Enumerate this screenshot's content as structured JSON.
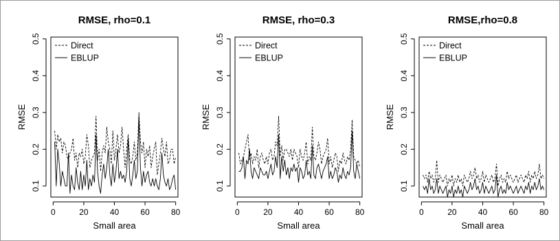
{
  "chart_data": [
    {
      "type": "line",
      "title": "RMSE, rho=0.1",
      "xlabel": "Small area",
      "ylabel": "RMSE",
      "xlim": [
        0,
        80
      ],
      "ylim": [
        0.05,
        0.5
      ],
      "xticks": [
        0,
        20,
        40,
        60,
        80
      ],
      "yticks": [
        0.1,
        0.2,
        0.3,
        0.4,
        0.5
      ],
      "grid": false,
      "legend": "top-left",
      "series": [
        {
          "name": "Direct",
          "style": "dashed",
          "values": [
            0.25,
            0.2,
            0.24,
            0.22,
            0.23,
            0.19,
            0.22,
            0.21,
            0.18,
            0.17,
            0.19,
            0.2,
            0.23,
            0.17,
            0.19,
            0.15,
            0.19,
            0.18,
            0.2,
            0.16,
            0.18,
            0.24,
            0.21,
            0.15,
            0.17,
            0.18,
            0.19,
            0.29,
            0.17,
            0.2,
            0.14,
            0.19,
            0.21,
            0.19,
            0.26,
            0.22,
            0.2,
            0.16,
            0.25,
            0.17,
            0.2,
            0.24,
            0.19,
            0.21,
            0.26,
            0.2,
            0.15,
            0.2,
            0.24,
            0.17,
            0.16,
            0.18,
            0.22,
            0.17,
            0.19,
            0.3,
            0.22,
            0.19,
            0.22,
            0.15,
            0.2,
            0.18,
            0.21,
            0.15,
            0.18,
            0.2,
            0.22,
            0.13,
            0.16,
            0.19,
            0.23,
            0.2,
            0.18,
            0.22,
            0.16,
            0.17,
            0.2,
            0.2,
            0.16,
            0.18
          ]
        },
        {
          "name": "EBLUP",
          "style": "solid",
          "values": [
            0.22,
            0.1,
            0.2,
            0.16,
            0.1,
            0.14,
            0.12,
            0.1,
            0.1,
            0.19,
            0.08,
            0.13,
            0.1,
            0.09,
            0.15,
            0.11,
            0.09,
            0.14,
            0.09,
            0.13,
            0.1,
            0.17,
            0.09,
            0.12,
            0.1,
            0.13,
            0.11,
            0.24,
            0.14,
            0.1,
            0.08,
            0.13,
            0.16,
            0.12,
            0.15,
            0.2,
            0.13,
            0.1,
            0.16,
            0.11,
            0.14,
            0.2,
            0.12,
            0.14,
            0.12,
            0.13,
            0.11,
            0.14,
            0.23,
            0.12,
            0.1,
            0.13,
            0.17,
            0.12,
            0.14,
            0.29,
            0.15,
            0.1,
            0.14,
            0.11,
            0.13,
            0.14,
            0.11,
            0.1,
            0.12,
            0.1,
            0.12,
            0.1,
            0.09,
            0.12,
            0.19,
            0.13,
            0.11,
            0.1,
            0.12,
            0.09,
            0.1,
            0.12,
            0.13,
            0.09
          ]
        }
      ]
    },
    {
      "type": "line",
      "title": "RMSE, rho=0.3",
      "xlabel": "Small area",
      "ylabel": "RMSE",
      "xlim": [
        0,
        80
      ],
      "ylim": [
        0.05,
        0.5
      ],
      "xticks": [
        0,
        20,
        40,
        60,
        80
      ],
      "yticks": [
        0.1,
        0.2,
        0.3,
        0.4,
        0.5
      ],
      "grid": false,
      "legend": "top-left",
      "series": [
        {
          "name": "Direct",
          "style": "dashed",
          "values": [
            0.19,
            0.16,
            0.17,
            0.18,
            0.2,
            0.22,
            0.24,
            0.17,
            0.19,
            0.16,
            0.18,
            0.17,
            0.2,
            0.15,
            0.18,
            0.19,
            0.17,
            0.16,
            0.18,
            0.16,
            0.19,
            0.2,
            0.17,
            0.18,
            0.22,
            0.21,
            0.29,
            0.18,
            0.21,
            0.17,
            0.2,
            0.2,
            0.19,
            0.18,
            0.2,
            0.17,
            0.2,
            0.19,
            0.18,
            0.15,
            0.2,
            0.18,
            0.17,
            0.19,
            0.22,
            0.16,
            0.18,
            0.17,
            0.26,
            0.18,
            0.17,
            0.19,
            0.22,
            0.2,
            0.16,
            0.18,
            0.19,
            0.2,
            0.23,
            0.16,
            0.18,
            0.15,
            0.17,
            0.19,
            0.18,
            0.14,
            0.17,
            0.16,
            0.19,
            0.17,
            0.16,
            0.18,
            0.17,
            0.2,
            0.28,
            0.18,
            0.17,
            0.16,
            0.17,
            0.15
          ]
        },
        {
          "name": "EBLUP",
          "style": "solid",
          "values": [
            0.14,
            0.14,
            0.15,
            0.18,
            0.12,
            0.17,
            0.16,
            0.2,
            0.14,
            0.12,
            0.15,
            0.14,
            0.13,
            0.12,
            0.15,
            0.14,
            0.13,
            0.13,
            0.14,
            0.12,
            0.14,
            0.16,
            0.13,
            0.14,
            0.18,
            0.15,
            0.24,
            0.12,
            0.18,
            0.14,
            0.17,
            0.13,
            0.15,
            0.12,
            0.15,
            0.14,
            0.16,
            0.14,
            0.15,
            0.11,
            0.15,
            0.14,
            0.12,
            0.13,
            0.17,
            0.13,
            0.14,
            0.12,
            0.21,
            0.13,
            0.12,
            0.15,
            0.16,
            0.14,
            0.12,
            0.14,
            0.15,
            0.16,
            0.18,
            0.12,
            0.14,
            0.12,
            0.13,
            0.15,
            0.14,
            0.11,
            0.13,
            0.12,
            0.15,
            0.13,
            0.12,
            0.14,
            0.13,
            0.15,
            0.25,
            0.14,
            0.12,
            0.16,
            0.14,
            0.12
          ]
        }
      ]
    },
    {
      "type": "line",
      "title": "RMSE,rho=0.8",
      "xlabel": "Small area",
      "ylabel": "RMSE",
      "xlim": [
        0,
        80
      ],
      "ylim": [
        0.05,
        0.5
      ],
      "xticks": [
        0,
        20,
        40,
        60,
        80
      ],
      "yticks": [
        0.1,
        0.2,
        0.3,
        0.4,
        0.5
      ],
      "grid": false,
      "legend": "top-left",
      "series": [
        {
          "name": "Direct",
          "style": "dashed",
          "values": [
            0.13,
            0.12,
            0.13,
            0.11,
            0.14,
            0.12,
            0.13,
            0.11,
            0.12,
            0.17,
            0.11,
            0.13,
            0.12,
            0.11,
            0.12,
            0.13,
            0.1,
            0.12,
            0.11,
            0.13,
            0.1,
            0.12,
            0.11,
            0.13,
            0.11,
            0.12,
            0.1,
            0.13,
            0.12,
            0.11,
            0.12,
            0.14,
            0.12,
            0.13,
            0.15,
            0.12,
            0.13,
            0.11,
            0.12,
            0.14,
            0.11,
            0.13,
            0.12,
            0.11,
            0.12,
            0.13,
            0.11,
            0.12,
            0.16,
            0.1,
            0.12,
            0.13,
            0.11,
            0.12,
            0.11,
            0.14,
            0.12,
            0.13,
            0.12,
            0.11,
            0.12,
            0.13,
            0.11,
            0.12,
            0.13,
            0.12,
            0.11,
            0.13,
            0.12,
            0.14,
            0.11,
            0.13,
            0.12,
            0.14,
            0.12,
            0.13,
            0.16,
            0.12,
            0.13,
            0.12
          ]
        },
        {
          "name": "EBLUP",
          "style": "solid",
          "values": [
            0.1,
            0.09,
            0.1,
            0.08,
            0.12,
            0.09,
            0.1,
            0.08,
            0.09,
            0.12,
            0.08,
            0.1,
            0.09,
            0.08,
            0.09,
            0.1,
            0.07,
            0.09,
            0.08,
            0.1,
            0.07,
            0.09,
            0.08,
            0.1,
            0.08,
            0.09,
            0.07,
            0.1,
            0.09,
            0.08,
            0.09,
            0.11,
            0.09,
            0.1,
            0.12,
            0.09,
            0.1,
            0.08,
            0.09,
            0.11,
            0.08,
            0.1,
            0.09,
            0.08,
            0.09,
            0.1,
            0.08,
            0.09,
            0.13,
            0.07,
            0.09,
            0.1,
            0.08,
            0.09,
            0.08,
            0.11,
            0.09,
            0.1,
            0.09,
            0.08,
            0.09,
            0.1,
            0.08,
            0.09,
            0.1,
            0.09,
            0.08,
            0.1,
            0.09,
            0.11,
            0.08,
            0.1,
            0.09,
            0.11,
            0.09,
            0.1,
            0.12,
            0.09,
            0.1,
            0.09
          ]
        }
      ]
    }
  ]
}
